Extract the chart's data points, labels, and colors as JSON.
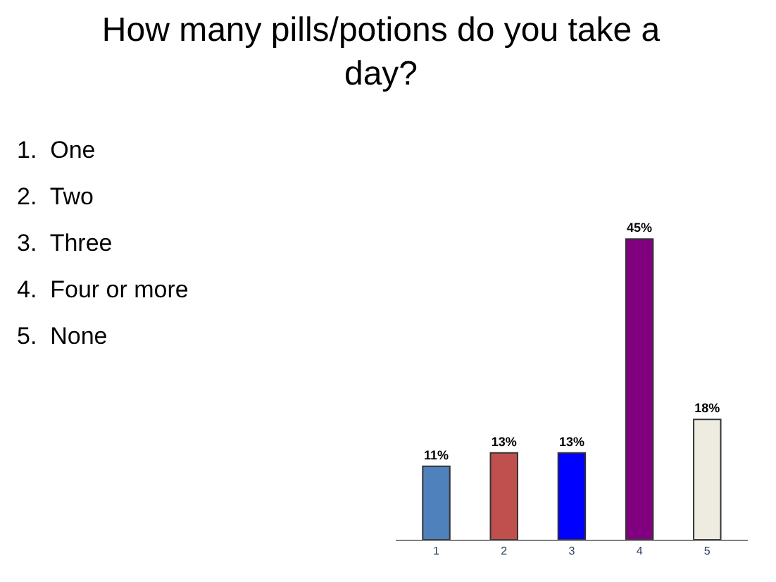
{
  "chart_data": {
    "type": "bar",
    "title": "How many pills/potions do you take a day?",
    "categories": [
      "1",
      "2",
      "3",
      "4",
      "5"
    ],
    "values": [
      11,
      13,
      13,
      45,
      18
    ],
    "colors": [
      "#4f81bd",
      "#c0504d",
      "#0000ff",
      "#800080",
      "#eeece1"
    ],
    "value_labels": [
      "11%",
      "13%",
      "13%",
      "45%",
      "18%"
    ],
    "annotations": [
      "1.  One",
      "2.  Two",
      "3.  Three",
      "4.  Four or more",
      "5.  None"
    ],
    "legend": false
  }
}
